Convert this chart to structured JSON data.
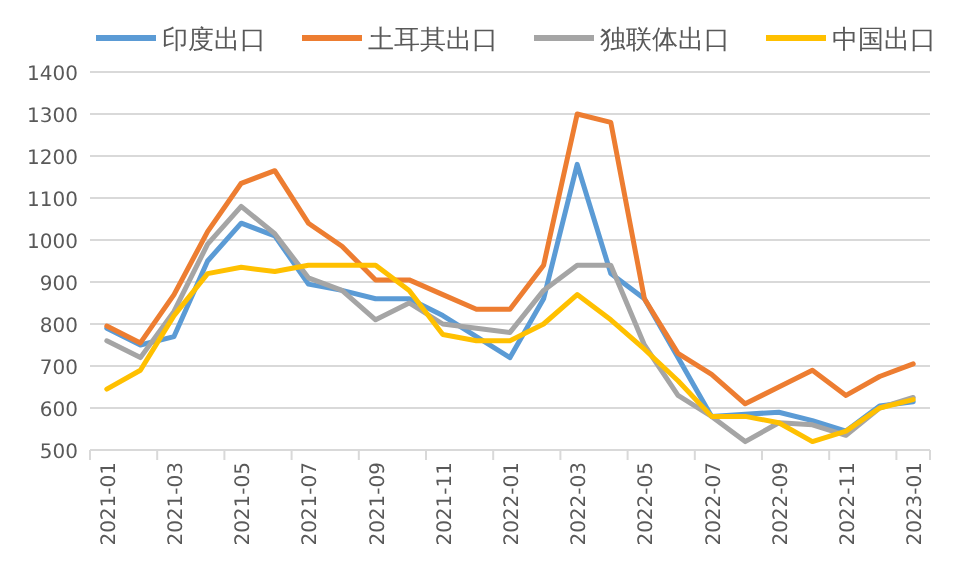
{
  "chart_data": {
    "type": "line",
    "categories": [
      "2021-01",
      null,
      "2021-03",
      null,
      "2021-05",
      null,
      "2021-07",
      null,
      "2021-09",
      null,
      "2021-11",
      null,
      "2022-01",
      null,
      "2022-03",
      null,
      "2022-05",
      null,
      "2022-07",
      null,
      "2022-09",
      null,
      "2022-11",
      null,
      "2023-01"
    ],
    "series": [
      {
        "name": "印度出口",
        "color": "#5b9bd5",
        "values": [
          790,
          750,
          770,
          950,
          1040,
          1010,
          895,
          880,
          860,
          860,
          820,
          770,
          720,
          860,
          1180,
          920,
          860,
          720,
          580,
          585,
          590,
          570,
          545,
          605,
          615
        ]
      },
      {
        "name": "土耳其出口",
        "color": "#ed7d31",
        "values": [
          795,
          755,
          870,
          1020,
          1135,
          1165,
          1040,
          985,
          905,
          905,
          870,
          835,
          835,
          940,
          1300,
          1280,
          860,
          730,
          680,
          610,
          650,
          690,
          630,
          675,
          705
        ]
      },
      {
        "name": "独联体出口",
        "color": "#a5a5a5",
        "values": [
          760,
          720,
          830,
          990,
          1080,
          1015,
          910,
          880,
          810,
          850,
          800,
          790,
          780,
          880,
          940,
          940,
          750,
          630,
          580,
          520,
          565,
          560,
          535,
          600,
          625
        ]
      },
      {
        "name": "中国出口",
        "color": "#ffc000",
        "values": [
          645,
          690,
          820,
          920,
          935,
          925,
          940,
          940,
          940,
          880,
          775,
          760,
          760,
          800,
          870,
          810,
          740,
          665,
          580,
          580,
          565,
          520,
          545,
          600,
          620
        ]
      }
    ],
    "ylim": [
      500,
      1400
    ],
    "yticks": [
      500,
      600,
      700,
      800,
      900,
      1000,
      1100,
      1200,
      1300,
      1400
    ],
    "grid": "y",
    "legend": "top",
    "marker": "none",
    "line_style": "solid"
  }
}
